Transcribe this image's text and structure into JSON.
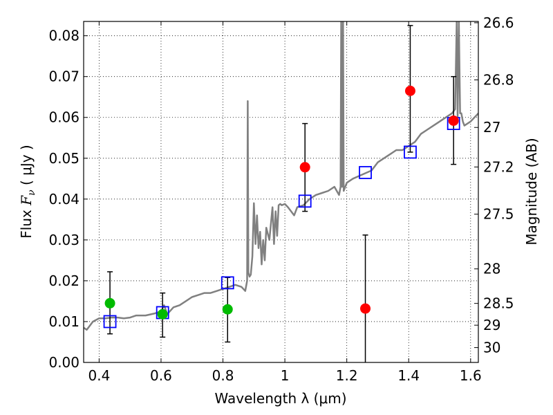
{
  "chart_data": {
    "type": "scatter",
    "xlabel": "Wavelength  λ (μm)",
    "ylabel_prefix": "Flux  ",
    "ylabel_symbol": "F",
    "ylabel_subscript": "ν",
    "ylabel_unit": "  ( μJy )",
    "ylabel_right": "Magnitude (AB)",
    "xlim": [
      0.35,
      1.625
    ],
    "ylim": [
      0.0,
      0.0835
    ],
    "grid": true,
    "x_ticks": [
      0.4,
      0.6,
      0.8,
      1.0,
      1.2,
      1.4,
      1.6
    ],
    "x_tick_labels": [
      "0.4",
      "0.6",
      "0.8",
      "1",
      "1.2",
      "1.4",
      "1.6"
    ],
    "y_ticks": [
      0.0,
      0.01,
      0.02,
      0.03,
      0.04,
      0.05,
      0.06,
      0.07,
      0.08
    ],
    "y_tick_labels": [
      "0.00",
      "0.01",
      "0.02",
      "0.03",
      "0.04",
      "0.05",
      "0.06",
      "0.07",
      "0.08"
    ],
    "right_ticks": [
      {
        "mag": 26.6,
        "label": "26.6"
      },
      {
        "mag": 26.8,
        "label": "26.8"
      },
      {
        "mag": 27.0,
        "label": "27"
      },
      {
        "mag": 27.2,
        "label": "27.2"
      },
      {
        "mag": 27.5,
        "label": "27.5"
      },
      {
        "mag": 28.0,
        "label": "28"
      },
      {
        "mag": 28.5,
        "label": "28.5"
      },
      {
        "mag": 29.0,
        "label": "29"
      },
      {
        "mag": 30.0,
        "label": "30"
      }
    ],
    "colors": {
      "model": "#808080",
      "model_photometry": "#0000ff",
      "detections": "#ff0000",
      "optical": "#00bb00",
      "errorbar": "#000000"
    },
    "model_spectrum": {
      "x": [
        0.35,
        0.36,
        0.38,
        0.4,
        0.42,
        0.44,
        0.46,
        0.48,
        0.5,
        0.52,
        0.55,
        0.58,
        0.6,
        0.61,
        0.62,
        0.64,
        0.66,
        0.68,
        0.7,
        0.72,
        0.74,
        0.76,
        0.78,
        0.8,
        0.82,
        0.84,
        0.86,
        0.872,
        0.878,
        0.88,
        0.882,
        0.886,
        0.89,
        0.895,
        0.9,
        0.905,
        0.91,
        0.915,
        0.92,
        0.925,
        0.93,
        0.935,
        0.94,
        0.95,
        0.96,
        0.965,
        0.97,
        0.975,
        0.98,
        0.985,
        0.99,
        1.0,
        1.01,
        1.02,
        1.03,
        1.04,
        1.06,
        1.08,
        1.1,
        1.12,
        1.14,
        1.16,
        1.175,
        1.18,
        1.182,
        1.185,
        1.188,
        1.19,
        1.2,
        1.22,
        1.25,
        1.28,
        1.3,
        1.32,
        1.34,
        1.36,
        1.38,
        1.4,
        1.42,
        1.44,
        1.46,
        1.48,
        1.5,
        1.52,
        1.54,
        1.55,
        1.555,
        1.558,
        1.562,
        1.566,
        1.57,
        1.575,
        1.58,
        1.6,
        1.625
      ],
      "y": [
        0.0085,
        0.008,
        0.01,
        0.0108,
        0.0108,
        0.011,
        0.011,
        0.0108,
        0.011,
        0.0115,
        0.0115,
        0.012,
        0.0125,
        0.014,
        0.0118,
        0.0135,
        0.014,
        0.015,
        0.016,
        0.0165,
        0.017,
        0.017,
        0.0175,
        0.018,
        0.0185,
        0.019,
        0.0185,
        0.0175,
        0.02,
        0.064,
        0.022,
        0.021,
        0.0215,
        0.026,
        0.039,
        0.029,
        0.036,
        0.028,
        0.032,
        0.024,
        0.03,
        0.025,
        0.033,
        0.03,
        0.038,
        0.029,
        0.037,
        0.031,
        0.0385,
        0.0388,
        0.0385,
        0.0388,
        0.038,
        0.037,
        0.036,
        0.038,
        0.0385,
        0.04,
        0.041,
        0.0415,
        0.042,
        0.043,
        0.041,
        0.043,
        0.0835,
        0.043,
        0.0835,
        0.042,
        0.044,
        0.045,
        0.046,
        0.047,
        0.049,
        0.05,
        0.051,
        0.052,
        0.052,
        0.053,
        0.054,
        0.056,
        0.057,
        0.058,
        0.059,
        0.06,
        0.061,
        0.062,
        0.0835,
        0.06,
        0.0835,
        0.061,
        0.061,
        0.059,
        0.058,
        0.059,
        0.061
      ]
    },
    "model_photometry": {
      "x": [
        0.435,
        0.605,
        0.815,
        1.065,
        1.26,
        1.405,
        1.545
      ],
      "y": [
        0.01,
        0.0122,
        0.0195,
        0.0395,
        0.0465,
        0.0515,
        0.0585
      ]
    },
    "detections": {
      "x": [
        1.065,
        1.26,
        1.405,
        1.545
      ],
      "y": [
        0.0478,
        0.0132,
        0.0665,
        0.0592
      ],
      "yerr_low": [
        0.037,
        0.0,
        0.0515,
        0.0485
      ],
      "yerr_high": [
        0.0585,
        0.0312,
        0.0825,
        0.07
      ]
    },
    "optical": {
      "x": [
        0.435,
        0.605,
        0.815
      ],
      "y": [
        0.0145,
        0.0118,
        0.013
      ],
      "yerr_low": [
        0.007,
        0.0062,
        0.005
      ],
      "yerr_high": [
        0.0222,
        0.017,
        0.0208
      ]
    }
  }
}
